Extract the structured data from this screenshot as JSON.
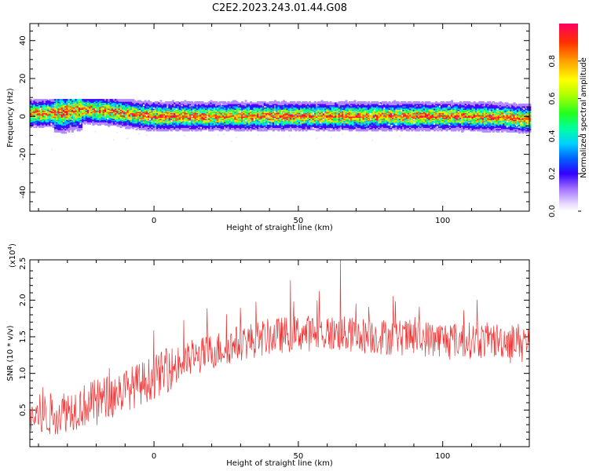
{
  "title": "C2E2.2023.243.01.44.G08",
  "chart_data": [
    {
      "type": "heatmap",
      "xlabel": "Height of straight line (km)",
      "ylabel": "Frequency (Hz)",
      "xlim": [
        -43,
        130
      ],
      "ylim": [
        -50,
        49
      ],
      "xticks": [
        0,
        50,
        100
      ],
      "yticks": [
        -40,
        -20,
        0,
        20,
        40
      ],
      "colorbar": {
        "label": "Normalized spectral amplitude",
        "range": [
          0,
          1
        ],
        "ticks": [
          0.0,
          0.2,
          0.4,
          0.6,
          0.8
        ]
      },
      "ridge": {
        "x": [
          -43,
          -38,
          -33,
          -30,
          -27,
          -24,
          -20,
          -15,
          -10,
          -5,
          0,
          10,
          20,
          40,
          60,
          80,
          100,
          120,
          130
        ],
        "y": [
          1.5,
          1.5,
          2,
          2.5,
          3,
          3.5,
          3,
          2.5,
          1.5,
          0.5,
          0,
          0,
          0,
          0,
          0,
          0,
          0,
          -0.5,
          -1.5
        ],
        "peak_amplitude": 1.0,
        "halfwidth_hz": 3.5
      },
      "colors": [
        "#f2eaff",
        "#b28aff",
        "#5000ff",
        "#2020ff",
        "#00b0ff",
        "#00ffd0",
        "#20ff40",
        "#c8ff00",
        "#ffd000",
        "#ff6000",
        "#ff1040"
      ]
    },
    {
      "type": "line",
      "xlabel": "Height of straight line (km)",
      "ylabel": "SNR (10 * v/v)",
      "y_multiplier": "(x10⁴)",
      "y_multiplier_base": "(x10",
      "y_multiplier_exp": "4",
      "y_multiplier_close": ")",
      "xlim": [
        -43,
        130
      ],
      "ylim": [
        0,
        2.55
      ],
      "xticks": [
        0,
        50,
        100
      ],
      "yticks": [
        0.5,
        1.0,
        1.5,
        2.0,
        2.5
      ],
      "ytick_labels": [
        "0.5",
        "1.0",
        "1.5",
        "2.0",
        "2.5"
      ],
      "color": "#ee3333",
      "series": [
        {
          "x_start": -43,
          "x_end": 130,
          "n_points": 900,
          "trend_x": [
            -43,
            -35,
            -25,
            -15,
            -5,
            0,
            10,
            20,
            30,
            40,
            50,
            60,
            70,
            80,
            90,
            100,
            110,
            120,
            130
          ],
          "trend_y": [
            0.4,
            0.45,
            0.55,
            0.7,
            0.85,
            0.95,
            1.15,
            1.3,
            1.42,
            1.5,
            1.55,
            1.55,
            1.52,
            1.5,
            1.48,
            1.47,
            1.45,
            1.45,
            1.45
          ],
          "noise": [
            0.3,
            0.25
          ],
          "max_value": 2.55,
          "max_at": 64.5
        }
      ]
    }
  ]
}
